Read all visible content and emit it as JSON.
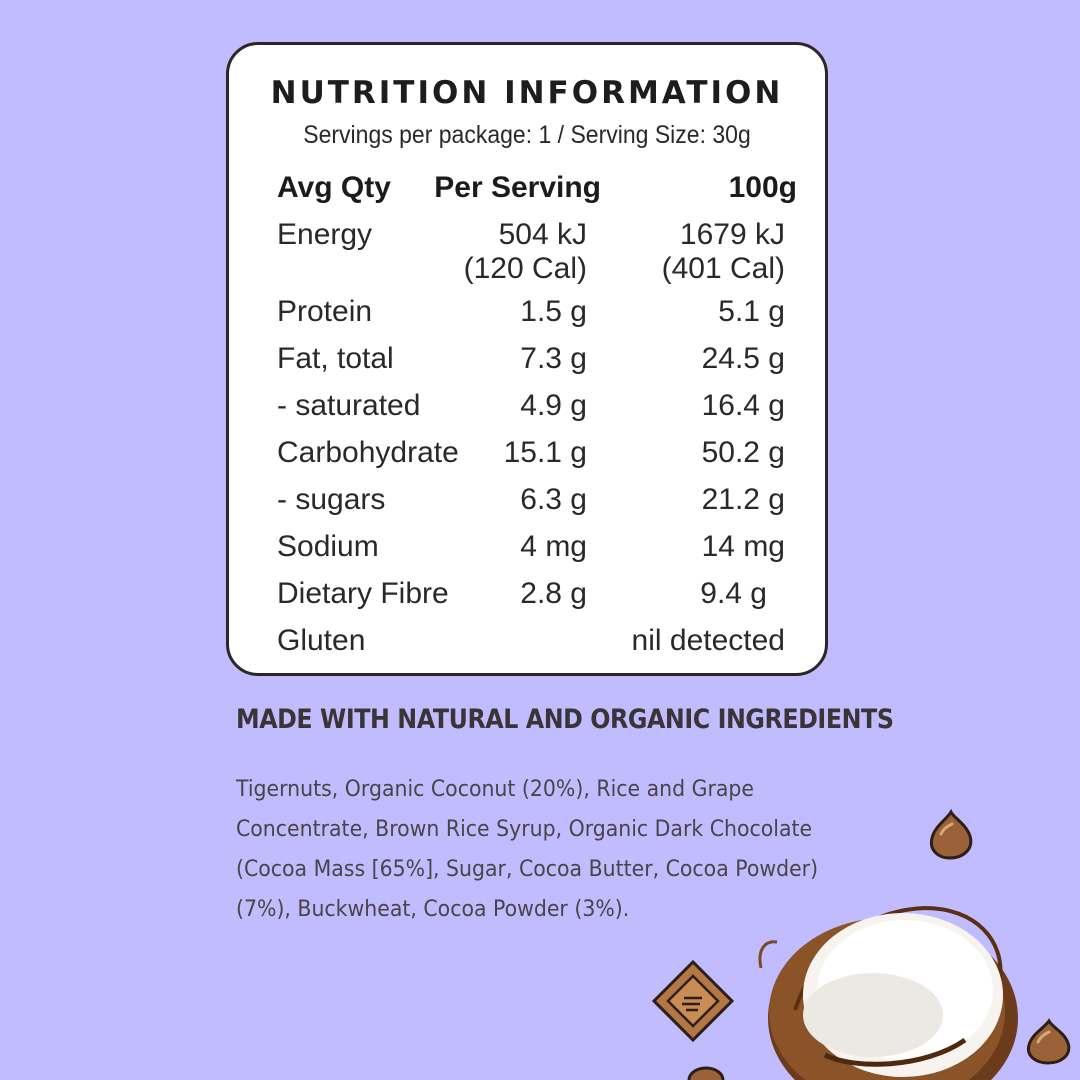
{
  "nutrition": {
    "title": "NUTRITION INFORMATION",
    "serving_info": "Servings per package: 1 / Serving Size: 30g",
    "headers": {
      "col1": "Avg Qty",
      "col2": "Per Serving",
      "col3": "100g"
    },
    "rows": [
      {
        "label": "Energy",
        "per_serving": "504 kJ",
        "per_serving_2": "(120 Cal)",
        "per_100g": "1679 kJ",
        "per_100g_2": "(401 Cal)"
      },
      {
        "label": "Protein",
        "per_serving": "1.5 g",
        "per_100g": "5.1 g"
      },
      {
        "label": "Fat, total",
        "per_serving": "7.3 g",
        "per_100g": "24.5 g"
      },
      {
        "label": "- saturated",
        "per_serving": "4.9 g",
        "per_100g": "16.4 g"
      },
      {
        "label": "Carbohydrate",
        "per_serving": "15.1 g",
        "per_100g": "50.2 g"
      },
      {
        "label": "- sugars",
        "per_serving": "6.3 g",
        "per_100g": "21.2 g"
      },
      {
        "label": "Sodium",
        "per_serving": "4 mg",
        "per_100g": "14 mg"
      },
      {
        "label": "Dietary Fibre",
        "per_serving": "2.8 g",
        "per_100g": "9.4 g"
      },
      {
        "label": "Gluten",
        "per_serving": "",
        "per_100g": "nil detected"
      }
    ]
  },
  "ingredients": {
    "heading": "MADE WITH NATURAL AND ORGANIC INGREDIENTS",
    "text": "Tigernuts, Organic Coconut (20%), Rice and Grape Concentrate, Brown Rice Syrup, Organic Dark Chocolate (Cocoa Mass [65%], Sugar, Cocoa Butter, Cocoa Powder) (7%), Buckwheat, Cocoa Powder (3%)."
  },
  "decorations": [
    "chocolate-chip-icon",
    "chocolate-chunk-icon",
    "coconut-half-icon"
  ],
  "colors": {
    "background": "#c0bcfe",
    "panel": "#ffffff",
    "border": "#2b2727",
    "text": "#2b2828"
  }
}
